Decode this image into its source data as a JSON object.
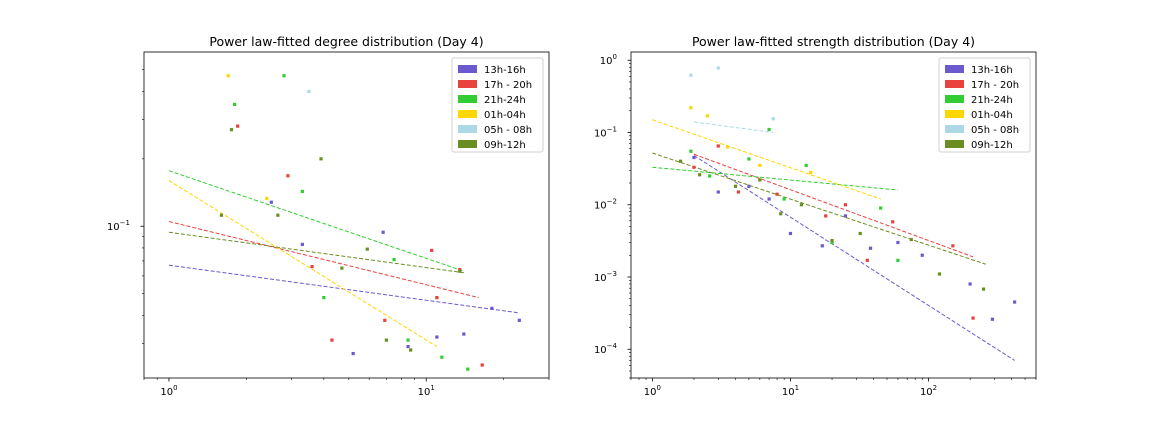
{
  "chart_data": [
    {
      "type": "scatter",
      "title": "Power law-fitted degree distribution (Day 4)",
      "xscale": "log",
      "yscale": "log",
      "xlim": [
        0.8,
        30
      ],
      "ylim": [
        0.021,
        0.6
      ],
      "x_ticks": [
        {
          "value": 1,
          "label": "10",
          "exp": "0"
        },
        {
          "value": 10,
          "label": "10",
          "exp": "1"
        }
      ],
      "y_ticks": [
        {
          "value": 0.1,
          "label": "10",
          "exp": "−1"
        }
      ],
      "grid": false,
      "legend_position": "top-right",
      "series": [
        {
          "name": "13h-16h",
          "color": "#6a5acd",
          "points": [
            [
              2.5,
              0.128
            ],
            [
              3.3,
              0.083
            ],
            [
              6.8,
              0.094
            ],
            [
              5.2,
              0.027
            ],
            [
              11,
              0.032
            ],
            [
              8.5,
              0.029
            ],
            [
              14,
              0.033
            ],
            [
              18,
              0.043
            ],
            [
              23,
              0.038
            ]
          ],
          "fit": [
            [
              1,
              0.067
            ],
            [
              23,
              0.041
            ]
          ]
        },
        {
          "name": "17h - 20h",
          "color": "#e8413e",
          "points": [
            [
              1.85,
              0.28
            ],
            [
              2.9,
              0.168
            ],
            [
              3.6,
              0.066
            ],
            [
              4.3,
              0.031
            ],
            [
              6.9,
              0.038
            ],
            [
              10.5,
              0.078
            ],
            [
              11,
              0.048
            ],
            [
              13.5,
              0.064
            ],
            [
              16.5,
              0.024
            ]
          ],
          "fit": [
            [
              1,
              0.105
            ],
            [
              16,
              0.048
            ]
          ]
        },
        {
          "name": "21h-24h",
          "color": "#32cd32",
          "points": [
            [
              1.8,
              0.35
            ],
            [
              2.8,
              0.47
            ],
            [
              3.3,
              0.143
            ],
            [
              4.0,
              0.048
            ],
            [
              7.5,
              0.071
            ],
            [
              8.5,
              0.031
            ],
            [
              11.5,
              0.026
            ],
            [
              14.5,
              0.023
            ]
          ],
          "fit": [
            [
              1,
              0.177
            ],
            [
              14,
              0.063
            ]
          ]
        },
        {
          "name": "01h-04h",
          "color": "#ffd700",
          "points": [
            [
              1.7,
              0.47
            ],
            [
              2.4,
              0.133
            ]
          ],
          "fit": [
            [
              1,
              0.16
            ],
            [
              11,
              0.029
            ]
          ]
        },
        {
          "name": "05h - 08h",
          "color": "#add8e6",
          "points": [
            [
              3.5,
              0.4
            ]
          ],
          "fit": []
        },
        {
          "name": "09h-12h",
          "color": "#6b8e23",
          "points": [
            [
              1.6,
              0.112
            ],
            [
              1.75,
              0.27
            ],
            [
              2.65,
              0.112
            ],
            [
              3.9,
              0.2
            ],
            [
              4.7,
              0.065
            ],
            [
              5.9,
              0.079
            ],
            [
              7.0,
              0.031
            ],
            [
              8.7,
              0.028
            ],
            [
              13.5,
              0.063
            ]
          ],
          "fit": [
            [
              1,
              0.094
            ],
            [
              14,
              0.062
            ]
          ]
        }
      ]
    },
    {
      "type": "scatter",
      "title": "Power law-fitted strength distribution (Day 4)",
      "xscale": "log",
      "yscale": "log",
      "xlim": [
        0.7,
        600
      ],
      "ylim": [
        4e-05,
        1.3
      ],
      "x_ticks": [
        {
          "value": 1,
          "label": "10",
          "exp": "0"
        },
        {
          "value": 10,
          "label": "10",
          "exp": "1"
        },
        {
          "value": 100,
          "label": "10",
          "exp": "2"
        }
      ],
      "y_ticks": [
        {
          "value": 0.0001,
          "label": "10",
          "exp": "−4"
        },
        {
          "value": 0.001,
          "label": "10",
          "exp": "−3"
        },
        {
          "value": 0.01,
          "label": "10",
          "exp": "−2"
        },
        {
          "value": 0.1,
          "label": "10",
          "exp": "−1"
        },
        {
          "value": 1,
          "label": "10",
          "exp": "0"
        }
      ],
      "grid": false,
      "legend_position": "top-right",
      "series": [
        {
          "name": "13h-16h",
          "color": "#6a5acd",
          "points": [
            [
              2,
              0.045
            ],
            [
              3,
              0.015
            ],
            [
              5,
              0.018
            ],
            [
              7,
              0.012
            ],
            [
              10,
              0.004
            ],
            [
              17,
              0.0027
            ],
            [
              25,
              0.007
            ],
            [
              38,
              0.0025
            ],
            [
              60,
              0.003
            ],
            [
              90,
              0.002
            ],
            [
              200,
              0.0008
            ],
            [
              290,
              0.00026
            ],
            [
              420,
              0.00045
            ]
          ],
          "fit": [
            [
              2,
              0.048
            ],
            [
              420,
              7e-05
            ]
          ]
        },
        {
          "name": "17h - 20h",
          "color": "#e8413e",
          "points": [
            [
              2,
              0.033
            ],
            [
              3,
              0.065
            ],
            [
              4.2,
              0.015
            ],
            [
              8,
              0.014
            ],
            [
              18,
              0.007
            ],
            [
              25,
              0.01
            ],
            [
              36,
              0.0017
            ],
            [
              55,
              0.0058
            ],
            [
              150,
              0.0027
            ],
            [
              210,
              0.00027
            ]
          ],
          "fit": [
            [
              2,
              0.05
            ],
            [
              210,
              0.0019
            ]
          ]
        },
        {
          "name": "21h-24h",
          "color": "#32cd32",
          "points": [
            [
              1.9,
              0.055
            ],
            [
              2.6,
              0.025
            ],
            [
              5,
              0.043
            ],
            [
              7,
              0.11
            ],
            [
              9,
              0.012
            ],
            [
              13,
              0.035
            ],
            [
              20,
              0.003
            ],
            [
              45,
              0.009
            ],
            [
              60,
              0.0017
            ]
          ],
          "fit": [
            [
              1,
              0.033
            ],
            [
              60,
              0.016
            ]
          ]
        },
        {
          "name": "01h-04h",
          "color": "#ffd700",
          "points": [
            [
              1.9,
              0.22
            ],
            [
              2.5,
              0.17
            ],
            [
              3.5,
              0.063
            ],
            [
              6,
              0.035
            ],
            [
              14,
              0.028
            ]
          ],
          "fit": [
            [
              1,
              0.15
            ],
            [
              45,
              0.012
            ]
          ]
        },
        {
          "name": "05h - 08h",
          "color": "#add8e6",
          "points": [
            [
              1.9,
              0.62
            ],
            [
              3,
              0.78
            ],
            [
              7.5,
              0.155
            ]
          ],
          "fit": [
            [
              2,
              0.14
            ],
            [
              7.5,
              0.1
            ]
          ]
        },
        {
          "name": "09h-12h",
          "color": "#6b8e23",
          "points": [
            [
              1.6,
              0.04
            ],
            [
              2.2,
              0.026
            ],
            [
              4,
              0.018
            ],
            [
              6,
              0.022
            ],
            [
              8.5,
              0.0075
            ],
            [
              12,
              0.01
            ],
            [
              20,
              0.0032
            ],
            [
              32,
              0.004
            ],
            [
              75,
              0.0033
            ],
            [
              120,
              0.0011
            ],
            [
              250,
              0.00068
            ]
          ],
          "fit": [
            [
              1,
              0.052
            ],
            [
              260,
              0.0015
            ]
          ]
        }
      ]
    }
  ]
}
